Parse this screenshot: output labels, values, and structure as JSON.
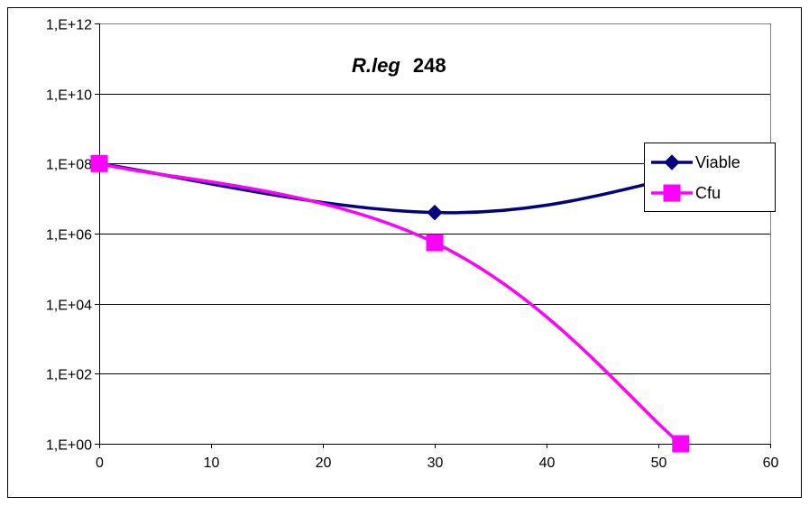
{
  "chart_data": {
    "type": "line",
    "title_italic": "R.leg",
    "title_rest": "248",
    "xlabel": "",
    "ylabel": "",
    "x_ticks": [
      0,
      10,
      20,
      30,
      40,
      50,
      60
    ],
    "xlim": [
      0,
      60
    ],
    "y_scale": "log",
    "ylim": [
      1,
      1000000000000
    ],
    "y_ticks": [
      {
        "value": 1,
        "label": "1,E+00"
      },
      {
        "value": 100,
        "label": "1,E+02"
      },
      {
        "value": 10000,
        "label": "1,E+04"
      },
      {
        "value": 1000000,
        "label": "1,E+06"
      },
      {
        "value": 100000000,
        "label": "1,E+08"
      },
      {
        "value": 10000000000,
        "label": "1,E+10"
      },
      {
        "value": 1000000000000,
        "label": "1,E+12"
      }
    ],
    "grid": "horizontal",
    "legend_position": "right",
    "series": [
      {
        "name": "Viable",
        "color": "#000080",
        "marker": "diamond",
        "smooth": true,
        "points": [
          {
            "x": 0,
            "y": 100000000
          },
          {
            "x": 30,
            "y": 4000000
          },
          {
            "x": 52,
            "y": 40000000
          }
        ]
      },
      {
        "name": "Cfu",
        "color": "#ff00ff",
        "marker": "square",
        "smooth": true,
        "points": [
          {
            "x": 0,
            "y": 100000000
          },
          {
            "x": 30,
            "y": 550000
          },
          {
            "x": 52,
            "y": 1
          }
        ]
      }
    ]
  }
}
